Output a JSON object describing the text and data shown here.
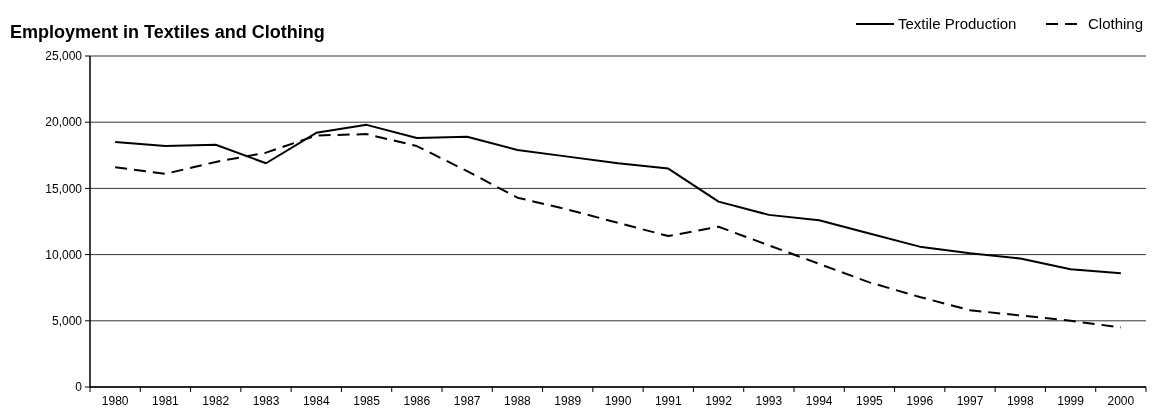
{
  "chart_data": {
    "type": "line",
    "title": "Employment in Textiles and Clothing",
    "categories": [
      "1980",
      "1981",
      "1982",
      "1983",
      "1984",
      "1985",
      "1986",
      "1987",
      "1988",
      "1989",
      "1990",
      "1991",
      "1992",
      "1993",
      "1994",
      "1995",
      "1996",
      "1997",
      "1998",
      "1999",
      "2000"
    ],
    "series": [
      {
        "name": "Textile Production",
        "color": "#000000",
        "line_style": "solid",
        "values": [
          18500,
          18200,
          18300,
          16900,
          19200,
          19800,
          18800,
          18900,
          17900,
          17400,
          16900,
          16500,
          14000,
          13000,
          12600,
          11600,
          10600,
          10100,
          9700,
          8900,
          8600
        ]
      },
      {
        "name": "Clothing",
        "color": "#000000",
        "line_style": "dashed",
        "values": [
          16600,
          16100,
          17000,
          17700,
          19000,
          19100,
          18200,
          16300,
          14300,
          13400,
          12400,
          11400,
          12100,
          10700,
          9300,
          7900,
          6800,
          5800,
          5400,
          5000,
          4500
        ]
      }
    ],
    "ylim": [
      0,
      25000
    ],
    "yticks": [
      {
        "value": 0,
        "label": "0"
      },
      {
        "value": 5000,
        "label": "5,000"
      },
      {
        "value": 10000,
        "label": "10,000"
      },
      {
        "value": 15000,
        "label": "15,000"
      },
      {
        "value": 20000,
        "label": "20,000"
      },
      {
        "value": 25000,
        "label": "25,000"
      }
    ],
    "grid": "y",
    "legend": "top right",
    "marker": "none"
  }
}
